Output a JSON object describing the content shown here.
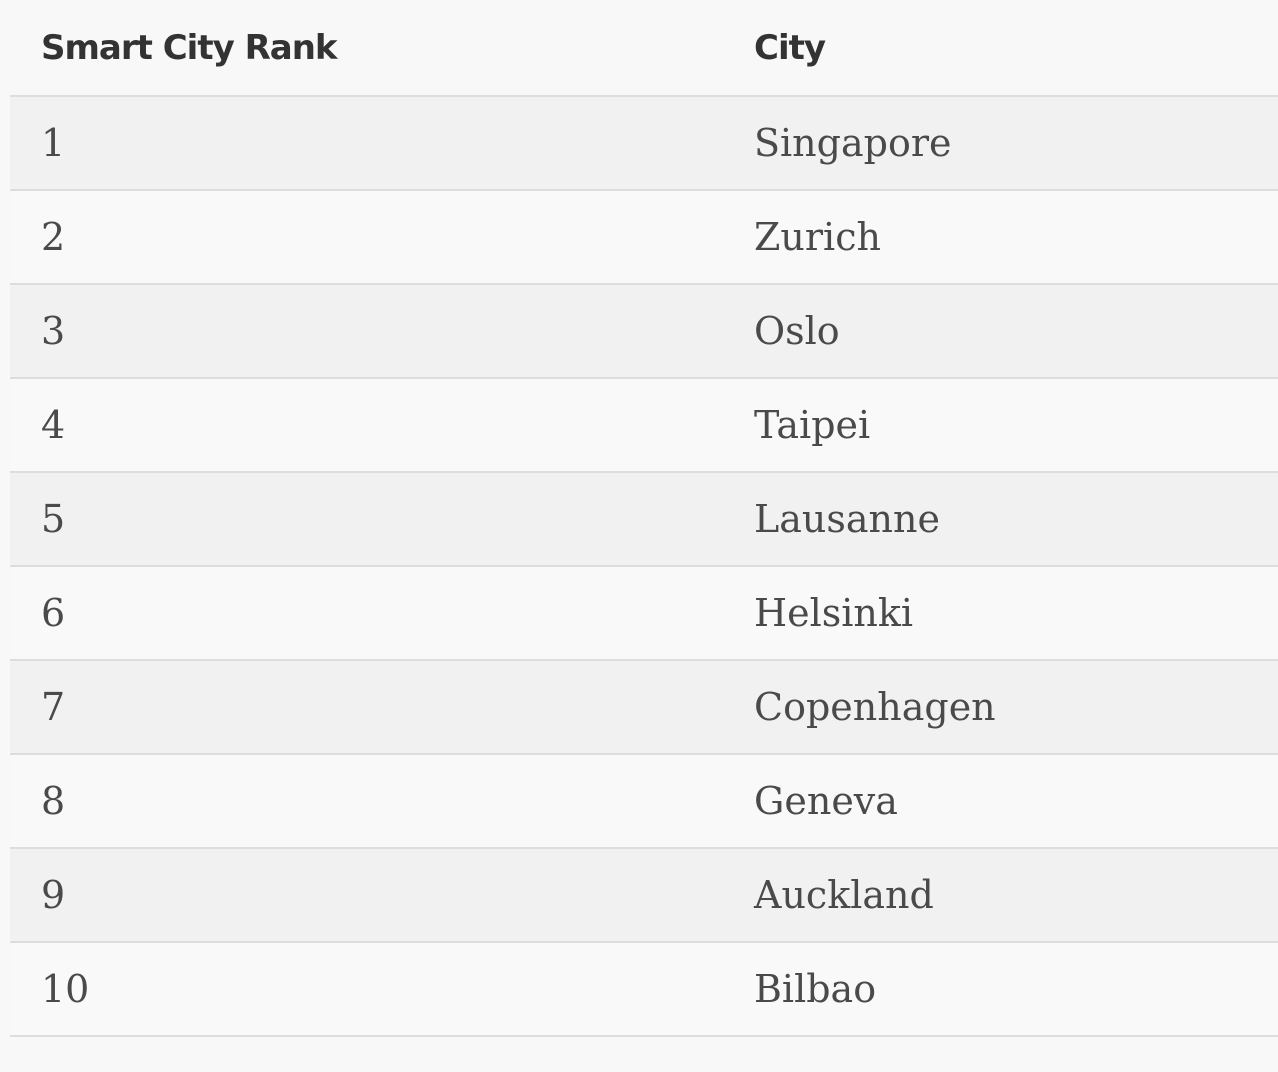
{
  "table": {
    "headers": [
      "Smart City Rank",
      "City"
    ],
    "rows": [
      {
        "rank": "1",
        "city": "Singapore"
      },
      {
        "rank": "2",
        "city": "Zurich"
      },
      {
        "rank": "3",
        "city": "Oslo"
      },
      {
        "rank": "4",
        "city": "Taipei"
      },
      {
        "rank": "5",
        "city": "Lausanne"
      },
      {
        "rank": "6",
        "city": "Helsinki"
      },
      {
        "rank": "7",
        "city": "Copenhagen"
      },
      {
        "rank": "8",
        "city": "Geneva"
      },
      {
        "rank": "9",
        "city": "Auckland"
      },
      {
        "rank": "10",
        "city": "Bilbao"
      }
    ]
  },
  "colors": {
    "background": "#f8f8f8",
    "row_shaded": "#f1f1f1",
    "row_plain": "#f9f9f9",
    "divider": "#dddddd",
    "header_text": "#333333",
    "body_text": "#4a4a4a"
  }
}
